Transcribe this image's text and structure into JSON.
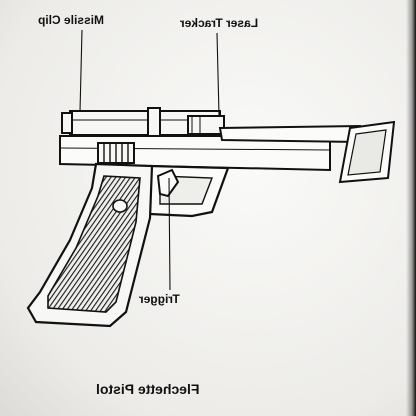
{
  "diagram": {
    "labels": {
      "missile_clip": "Missile Clip",
      "laser_tracker": "Laser Tracker",
      "trigger": "Trigger"
    },
    "caption": "Flechette Pistol"
  },
  "colors": {
    "ink": "#111111",
    "grip_hatch": "#2b2b2b",
    "paper": "#f2f2f0"
  }
}
